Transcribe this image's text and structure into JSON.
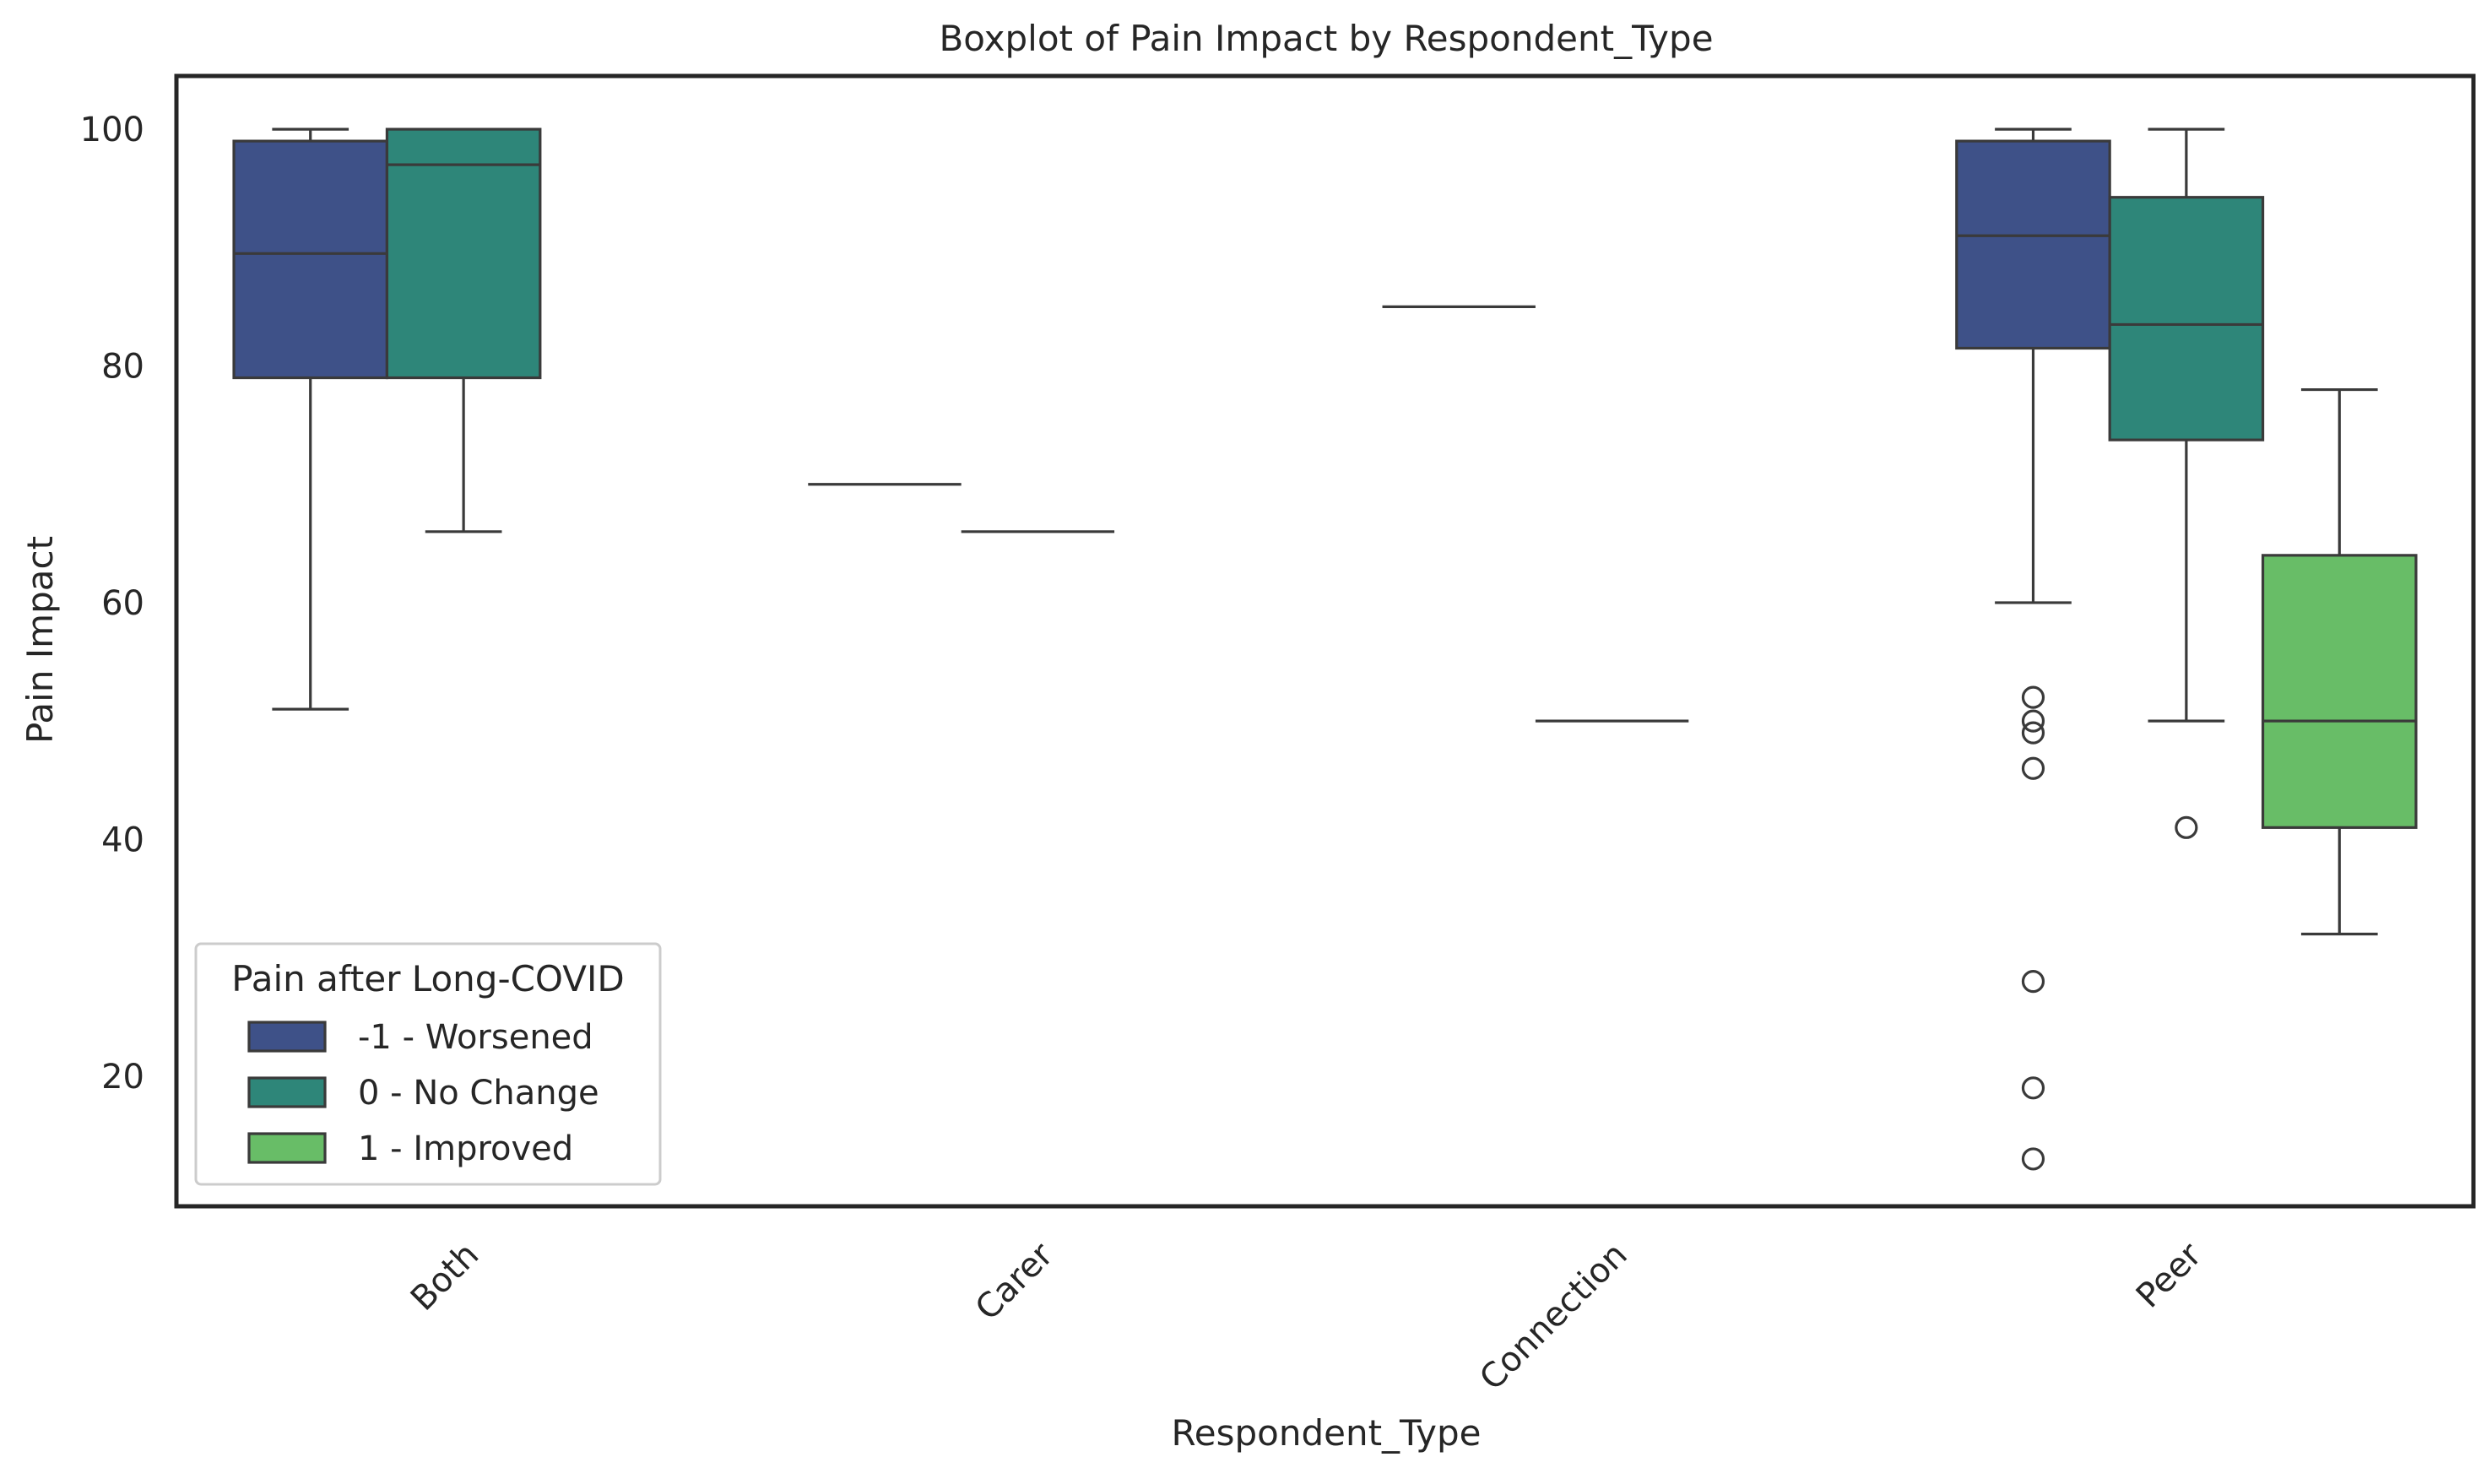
{
  "chart_data": {
    "type": "box",
    "title": "Boxplot of Pain Impact by Respondent_Type",
    "xlabel": "Respondent_Type",
    "ylabel": "Pain Impact",
    "ylim": [
      9,
      104.5
    ],
    "yticks": [
      20,
      40,
      60,
      80,
      100
    ],
    "categories": [
      "Both",
      "Carer",
      "Connection",
      "Peer"
    ],
    "legend": {
      "title": "Pain after Long-COVID",
      "placement": "lower-left"
    },
    "grid": false,
    "series": [
      {
        "name": "-1 - Worsened",
        "color": "#3e5188",
        "boxes": [
          {
            "category": "Both",
            "whisker_low": 51,
            "q1": 79,
            "median": 89.5,
            "q3": 99,
            "whisker_high": 100,
            "outliers": []
          },
          {
            "category": "Carer",
            "whisker_low": 70,
            "q1": 70,
            "median": 70,
            "q3": 70,
            "whisker_high": 70,
            "outliers": []
          },
          {
            "category": "Connection",
            "whisker_low": 85,
            "q1": 85,
            "median": 85,
            "q3": 85,
            "whisker_high": 85,
            "outliers": []
          },
          {
            "category": "Peer",
            "whisker_low": 60,
            "q1": 81.5,
            "median": 91,
            "q3": 99,
            "whisker_high": 100,
            "outliers": [
              52,
              50,
              49,
              46,
              28,
              19,
              13
            ]
          }
        ]
      },
      {
        "name": "0 - No Change",
        "color": "#2e8679",
        "boxes": [
          {
            "category": "Both",
            "whisker_low": 66,
            "q1": 79,
            "median": 97,
            "q3": 100,
            "whisker_high": 100,
            "outliers": []
          },
          {
            "category": "Carer",
            "whisker_low": 66,
            "q1": 66,
            "median": 66,
            "q3": 66,
            "whisker_high": 66,
            "outliers": []
          },
          {
            "category": "Connection",
            "whisker_low": 50,
            "q1": 50,
            "median": 50,
            "q3": 50,
            "whisker_high": 50,
            "outliers": []
          },
          {
            "category": "Peer",
            "whisker_low": 50,
            "q1": 73.75,
            "median": 83.5,
            "q3": 94.25,
            "whisker_high": 100,
            "outliers": [
              41
            ]
          }
        ]
      },
      {
        "name": "1 - Improved",
        "color": "#68bd67",
        "boxes": [
          {
            "category": "Peer",
            "whisker_low": 32,
            "q1": 41,
            "median": 50,
            "q3": 64,
            "whisker_high": 78,
            "outliers": []
          }
        ]
      }
    ]
  }
}
